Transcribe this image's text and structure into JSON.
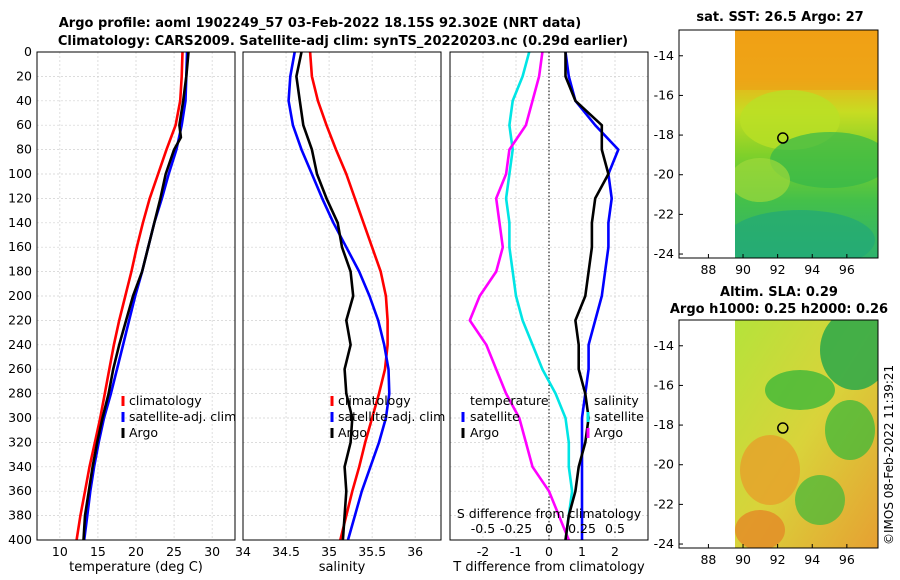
{
  "header": {
    "title_line1": "Argo profile: aoml 1902249_57 03-Feb-2022 18.15S 92.302E (NRT data)",
    "title_line2": "Climatology: CARS2009. Satellite-adj clim: synTS_20220203.nc (0.29d earlier)"
  },
  "colors": {
    "clim": "#ff0000",
    "sat": "#0000ff",
    "argo": "#000000",
    "tdiff": "#ff00ff",
    "sdiff": "#00e5e5"
  },
  "credit": "©IMOS 08-Feb-2022 11:39:21",
  "chart_data": [
    {
      "id": "temp",
      "type": "line",
      "xlabel": "temperature (deg C)",
      "ylabel": "",
      "xlim": [
        7,
        33
      ],
      "ylim": [
        400,
        0
      ],
      "xticks": [
        10,
        15,
        20,
        25,
        30
      ],
      "yticks": [
        0,
        20,
        40,
        60,
        80,
        100,
        120,
        140,
        160,
        180,
        200,
        220,
        240,
        260,
        280,
        300,
        320,
        340,
        360,
        380,
        400
      ],
      "legend": [
        "climatology",
        "satellite-adj. clim",
        "Argo"
      ],
      "series": [
        {
          "name": "climatology",
          "color": "clim",
          "depth": [
            0,
            20,
            40,
            60,
            80,
            100,
            120,
            140,
            160,
            180,
            200,
            220,
            240,
            260,
            280,
            300,
            320,
            340,
            360,
            380,
            400
          ],
          "values": [
            26.1,
            26.0,
            25.8,
            25.2,
            24.0,
            22.9,
            21.8,
            20.9,
            20.1,
            19.4,
            18.6,
            17.8,
            17.1,
            16.5,
            15.9,
            15.3,
            14.6,
            13.9,
            13.3,
            12.7,
            12.2
          ]
        },
        {
          "name": "satellite-adj. clim",
          "color": "sat",
          "depth": [
            0,
            20,
            40,
            60,
            80,
            100,
            120,
            140,
            160,
            180,
            200,
            220,
            240,
            260,
            280,
            300,
            320,
            340,
            360,
            380,
            400
          ],
          "values": [
            26.7,
            26.6,
            26.5,
            26.0,
            25.3,
            24.3,
            23.4,
            22.4,
            21.6,
            20.8,
            19.9,
            19.1,
            18.3,
            17.5,
            16.7,
            15.8,
            15.1,
            14.5,
            14.0,
            13.6,
            13.2
          ]
        },
        {
          "name": "Argo",
          "color": "argo",
          "depth": [
            0,
            20,
            40,
            60,
            70,
            80,
            100,
            120,
            140,
            160,
            180,
            200,
            220,
            240,
            260,
            280,
            300,
            320,
            340,
            360,
            380,
            400
          ],
          "values": [
            26.9,
            26.6,
            26.2,
            25.7,
            25.9,
            25.0,
            23.9,
            23.2,
            22.4,
            21.6,
            20.8,
            19.6,
            18.7,
            17.8,
            17.0,
            16.4,
            15.6,
            14.9,
            14.3,
            13.8,
            13.3,
            13.1
          ]
        }
      ]
    },
    {
      "id": "sal",
      "type": "line",
      "xlabel": "salinity",
      "ylabel": "",
      "xlim": [
        34,
        36.3
      ],
      "ylim": [
        400,
        0
      ],
      "xticks": [
        34,
        34.5,
        35,
        35.5,
        36
      ],
      "legend": [
        "climatology",
        "satellite-adj. clim",
        "Argo"
      ],
      "series": [
        {
          "name": "climatology",
          "color": "clim",
          "depth": [
            0,
            20,
            40,
            60,
            80,
            100,
            120,
            140,
            160,
            180,
            200,
            220,
            240,
            260,
            280,
            300,
            320,
            340,
            360,
            380,
            400
          ],
          "values": [
            34.78,
            34.8,
            34.87,
            34.97,
            35.08,
            35.2,
            35.3,
            35.4,
            35.5,
            35.6,
            35.66,
            35.68,
            35.68,
            35.65,
            35.58,
            35.5,
            35.42,
            35.35,
            35.27,
            35.2,
            35.13
          ]
        },
        {
          "name": "satellite-adj. clim",
          "color": "sat",
          "depth": [
            0,
            20,
            40,
            60,
            80,
            100,
            120,
            140,
            160,
            180,
            200,
            220,
            240,
            260,
            280,
            300,
            320,
            340,
            360,
            380,
            400
          ],
          "values": [
            34.6,
            34.55,
            34.53,
            34.58,
            34.68,
            34.8,
            34.92,
            35.05,
            35.2,
            35.35,
            35.47,
            35.57,
            35.64,
            35.69,
            35.7,
            35.66,
            35.58,
            35.48,
            35.38,
            35.3,
            35.22
          ]
        },
        {
          "name": "Argo",
          "color": "argo",
          "depth": [
            0,
            20,
            40,
            60,
            80,
            100,
            120,
            140,
            160,
            180,
            200,
            220,
            240,
            260,
            280,
            300,
            320,
            340,
            360,
            380,
            400
          ],
          "values": [
            34.68,
            34.62,
            34.66,
            34.7,
            34.8,
            34.86,
            34.97,
            35.1,
            35.15,
            35.25,
            35.28,
            35.2,
            35.25,
            35.18,
            35.2,
            35.27,
            35.25,
            35.18,
            35.2,
            35.18,
            35.16
          ]
        }
      ]
    },
    {
      "id": "diff",
      "type": "line",
      "xlabel": "T difference from climatology",
      "ylabel": "",
      "xlim": [
        -3,
        3
      ],
      "ylim": [
        400,
        0
      ],
      "xticks": [
        -2,
        -1,
        0,
        1,
        2
      ],
      "top_label": "S difference from climatology",
      "top_ticks": [
        "-0.5",
        "-0.25",
        "0",
        "0.25",
        "0.5"
      ],
      "legend": [
        "temperature",
        "satellite",
        "Argo",
        "salinity",
        "satellite",
        "Argo"
      ],
      "series": [
        {
          "name": "temperature satellite",
          "color": "sdiff",
          "depth": [
            0,
            20,
            40,
            60,
            80,
            100,
            120,
            140,
            160,
            180,
            200,
            220,
            240,
            260,
            280,
            300,
            320,
            340,
            360,
            380,
            400
          ],
          "values": [
            -0.6,
            -0.8,
            -1.1,
            -1.2,
            -1.1,
            -1.2,
            -1.3,
            -1.2,
            -1.2,
            -1.1,
            -1.0,
            -0.8,
            -0.5,
            -0.2,
            0.2,
            0.5,
            0.6,
            0.6,
            0.7,
            0.6,
            0.5
          ]
        },
        {
          "name": "temperature Argo",
          "color": "tdiff",
          "depth": [
            0,
            20,
            40,
            60,
            80,
            100,
            120,
            140,
            160,
            180,
            200,
            220,
            240,
            260,
            280,
            300,
            320,
            340,
            360,
            380,
            400
          ],
          "values": [
            -0.2,
            -0.3,
            -0.5,
            -0.7,
            -1.2,
            -1.3,
            -1.6,
            -1.5,
            -1.4,
            -1.6,
            -2.1,
            -2.4,
            -1.9,
            -1.6,
            -1.3,
            -0.9,
            -0.7,
            -0.5,
            0.0,
            0.3,
            0.6
          ]
        },
        {
          "name": "salinity satellite",
          "color": "sat",
          "depth": [
            0,
            20,
            40,
            60,
            80,
            100,
            120,
            140,
            160,
            180,
            200,
            220,
            240,
            260,
            280,
            300,
            320,
            340,
            360,
            380,
            400
          ],
          "values": [
            0.5,
            0.6,
            0.8,
            1.4,
            2.1,
            1.8,
            1.9,
            1.8,
            1.8,
            1.7,
            1.6,
            1.4,
            1.2,
            1.2,
            1.1,
            1.0,
            1.0,
            1.0,
            1.0,
            1.0,
            1.0
          ]
        },
        {
          "name": "salinity Argo",
          "color": "argo",
          "depth": [
            0,
            20,
            40,
            60,
            80,
            100,
            120,
            140,
            160,
            180,
            200,
            220,
            240,
            260,
            280,
            300,
            320,
            340,
            360,
            380,
            400
          ],
          "values": [
            0.5,
            0.5,
            0.8,
            1.6,
            1.6,
            1.8,
            1.4,
            1.3,
            1.3,
            1.2,
            1.1,
            0.8,
            0.9,
            0.9,
            1.1,
            1.2,
            1.1,
            0.9,
            0.8,
            0.6,
            0.5
          ]
        }
      ]
    },
    {
      "id": "sst_map",
      "type": "heatmap",
      "title": "sat. SST: 26.5 Argo: 27",
      "xticks": [
        88,
        90,
        92,
        94,
        96
      ],
      "yticks": [
        -14,
        -16,
        -18,
        -20,
        -22,
        -24
      ],
      "xlim": [
        86.3,
        97.8
      ],
      "ylim": [
        -12.7,
        -24.2
      ],
      "data_lon_min": 90,
      "marker": [
        92.3,
        -18.15
      ]
    },
    {
      "id": "sla_map",
      "type": "heatmap",
      "title_line1": "Altim. SLA: 0.29",
      "title_line2": "Argo h1000: 0.25 h2000: 0.26",
      "xticks": [
        88,
        90,
        92,
        94,
        96
      ],
      "yticks": [
        -14,
        -16,
        -18,
        -20,
        -22,
        -24
      ],
      "xlim": [
        86.3,
        97.8
      ],
      "ylim": [
        -12.7,
        -24.2
      ],
      "data_lon_min": 90,
      "marker": [
        92.3,
        -18.15
      ]
    }
  ]
}
